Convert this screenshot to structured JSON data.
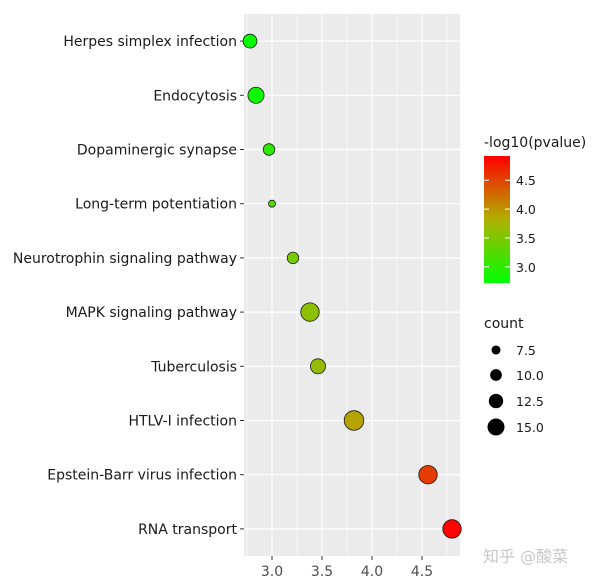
{
  "chart_data": {
    "type": "scatter",
    "categories": [
      "Herpes simplex infection",
      "Endocytosis",
      "Dopaminergic synapse",
      "Long-term potentiation",
      "Neurotrophin signaling pathway",
      "MAPK signaling pathway",
      "Tuberculosis",
      "HTLV-I infection",
      "Epstein-Barr virus infection",
      "RNA transport"
    ],
    "points": [
      {
        "category": "Herpes simplex infection",
        "x": 2.78,
        "count": 11,
        "log10p": 2.75
      },
      {
        "category": "Endocytosis",
        "x": 2.84,
        "count": 13,
        "log10p": 2.8
      },
      {
        "category": "Dopaminergic synapse",
        "x": 2.97,
        "count": 9,
        "log10p": 3.0
      },
      {
        "category": "Long-term potentiation",
        "x": 3.0,
        "count": 5,
        "log10p": 3.2
      },
      {
        "category": "Neurotrophin signaling pathway",
        "x": 3.21,
        "count": 9,
        "log10p": 3.45
      },
      {
        "category": "MAPK signaling pathway",
        "x": 3.38,
        "count": 15,
        "log10p": 3.6
      },
      {
        "category": "Tuberculosis",
        "x": 3.46,
        "count": 12,
        "log10p": 3.65
      },
      {
        "category": "HTLV-I infection",
        "x": 3.82,
        "count": 16,
        "log10p": 3.9
      },
      {
        "category": "Epstein-Barr virus infection",
        "x": 4.56,
        "count": 15,
        "log10p": 4.55
      },
      {
        "category": "RNA transport",
        "x": 4.8,
        "count": 15,
        "log10p": 4.9
      }
    ],
    "x_ticks": [
      "3.0",
      "3.5",
      "4.0",
      "4.5"
    ],
    "x_tick_values": [
      3.0,
      3.5,
      4.0,
      4.5
    ],
    "xlim": [
      2.72,
      4.88
    ],
    "xlabel": "",
    "ylabel": "",
    "grid": true,
    "background": "#ebebeb",
    "color_legend": {
      "title": "-log10(pvalue)",
      "ticks": [
        "3.0",
        "3.5",
        "4.0",
        "4.5"
      ],
      "tick_values": [
        3.0,
        3.5,
        4.0,
        4.5
      ],
      "range": [
        2.72,
        4.92
      ],
      "low_color": "#00ff00",
      "high_color": "#ff0000"
    },
    "size_legend": {
      "title": "count",
      "labels": [
        "7.5",
        "10.0",
        "12.5",
        "15.0"
      ],
      "values": [
        7.5,
        10.0,
        12.5,
        15.0
      ]
    },
    "legend_position": "right"
  },
  "watermark": "知乎 @酸菜"
}
